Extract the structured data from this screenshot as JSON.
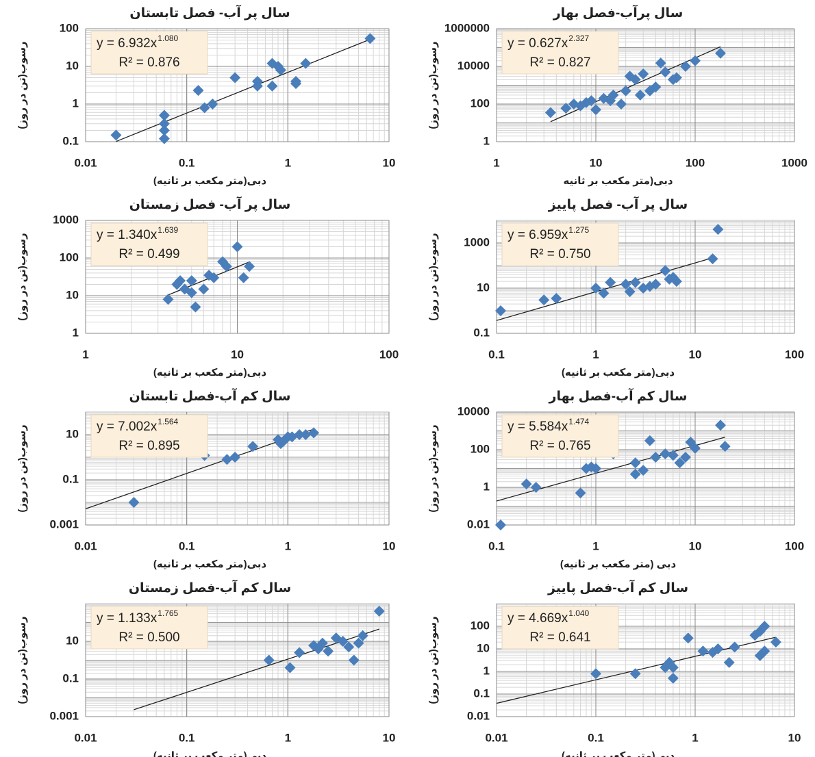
{
  "chart_data": [
    {
      "type": "scatter",
      "title": "سال پر آب- فصل تابستان",
      "x_label": "دبی(متر مکعب بر ثانیه)",
      "y_label": "رسوب(تن در روز)",
      "x_scale": "log",
      "y_scale": "log",
      "grid": true,
      "color": "#4a7ebb",
      "xlim": [
        0.01,
        10
      ],
      "xticks": [
        0.01,
        0.1,
        1,
        10
      ],
      "ylim": [
        0.1,
        100
      ],
      "yticks": [
        0.1,
        1,
        10,
        100
      ],
      "x": [
        0.02,
        0.06,
        0.06,
        0.06,
        0.06,
        0.13,
        0.15,
        0.18,
        0.3,
        0.5,
        0.5,
        0.7,
        0.7,
        0.8,
        0.85,
        1.2,
        1.2,
        1.5,
        6.5
      ],
      "values": [
        0.15,
        0.2,
        0.12,
        0.3,
        0.5,
        2.3,
        0.8,
        1,
        5,
        3,
        4,
        3,
        12,
        10,
        8,
        4,
        3.5,
        12,
        55
      ],
      "trendline": {
        "equation": "y = 6.932x",
        "exponent_label": "1.080",
        "r2_label": "R² = 0.876",
        "coefficient": 6.932,
        "exponent": 1.08,
        "x_range": [
          0.02,
          6.5
        ]
      }
    },
    {
      "type": "scatter",
      "title": "سال پرآب-فصل بهار",
      "x_label": "دبی(متر مکعب بر ثانیه",
      "y_label": "رسوب(تن در روز)",
      "x_scale": "log",
      "y_scale": "log",
      "grid": true,
      "color": "#4a7ebb",
      "xlim": [
        1,
        1000
      ],
      "xticks": [
        1,
        10,
        100,
        1000
      ],
      "ylim": [
        1,
        1000000
      ],
      "yticks": [
        1,
        100,
        10000,
        1000000
      ],
      "x": [
        3.5,
        5,
        6,
        7,
        8,
        9,
        10,
        12,
        14,
        15,
        18,
        20,
        22,
        25,
        28,
        30,
        35,
        40,
        45,
        50,
        60,
        65,
        80,
        100,
        180
      ],
      "values": [
        35,
        60,
        100,
        80,
        120,
        150,
        50,
        200,
        150,
        300,
        100,
        500,
        3000,
        2000,
        300,
        4000,
        500,
        800,
        15000,
        5000,
        2000,
        2500,
        10000,
        20000,
        50000
      ],
      "trendline": {
        "equation": "y = 0.627x",
        "exponent_label": "2.327",
        "r2_label": "R² = 0.827",
        "coefficient": 0.627,
        "exponent": 2.327,
        "x_range": [
          3.5,
          180
        ]
      }
    },
    {
      "type": "scatter",
      "title": "سال پر آب- فصل زمستان",
      "x_label": "دبی(متر مکعب بر ثانیه)",
      "y_label": "رسوب(تن در روز)",
      "x_scale": "log",
      "y_scale": "log",
      "grid": true,
      "color": "#4a7ebb",
      "xlim": [
        1,
        100
      ],
      "xticks": [
        1,
        10,
        100
      ],
      "ylim": [
        1,
        1000
      ],
      "yticks": [
        1,
        10,
        100,
        1000
      ],
      "x": [
        3.5,
        4,
        4.2,
        4.5,
        5,
        5,
        5.3,
        6,
        6.5,
        7,
        8,
        8.5,
        10,
        11,
        12
      ],
      "values": [
        8,
        20,
        25,
        15,
        25,
        12,
        5,
        15,
        35,
        30,
        80,
        60,
        200,
        30,
        60
      ],
      "trendline": {
        "equation": "y = 1.340x",
        "exponent_label": "1.639",
        "r2_label": "R² = 0.499",
        "coefficient": 1.34,
        "exponent": 1.639,
        "x_range": [
          3.5,
          12
        ]
      }
    },
    {
      "type": "scatter",
      "title": "سال پر آب- فصل پاییز",
      "x_label": "دبی(متر مکعب بر ثانیه)",
      "y_label": "رسوب(تن در روز)",
      "x_scale": "log",
      "y_scale": "log",
      "grid": true,
      "color": "#4a7ebb",
      "xlim": [
        0.1,
        100
      ],
      "xticks": [
        0.1,
        1,
        10,
        100
      ],
      "ylim": [
        0.1,
        10000
      ],
      "yticks": [
        0.1,
        10,
        1000
      ],
      "x": [
        0.11,
        0.3,
        0.4,
        1,
        1.2,
        1.4,
        2,
        2.2,
        2.5,
        3,
        3.5,
        4,
        5,
        5.5,
        6,
        6.5,
        15,
        17
      ],
      "values": [
        1,
        3,
        3.5,
        10,
        6,
        18,
        15,
        7,
        18,
        10,
        12,
        15,
        60,
        25,
        30,
        20,
        200,
        4000
      ],
      "trendline": {
        "equation": "y = 6.959x",
        "exponent_label": "1.275",
        "r2_label": "R² = 0.750",
        "coefficient": 6.959,
        "exponent": 1.275,
        "x_range": [
          0.1,
          15
        ]
      }
    },
    {
      "type": "scatter",
      "title": "سال کم آب-فصل تابستان",
      "x_label": "دبی(متر مکعب بر ثانیه)",
      "y_label": "رسوب(تن در روز)",
      "x_scale": "log",
      "y_scale": "log",
      "grid": true,
      "color": "#4a7ebb",
      "xlim": [
        0.01,
        10
      ],
      "xticks": [
        0.01,
        0.1,
        1,
        10
      ],
      "ylim": [
        0.001,
        100
      ],
      "yticks": [
        0.001,
        0.1,
        10
      ],
      "x": [
        0.03,
        0.15,
        0.25,
        0.3,
        0.45,
        0.8,
        0.85,
        0.9,
        1,
        1.1,
        1.3,
        1.5,
        1.8
      ],
      "values": [
        0.01,
        1.2,
        0.8,
        1,
        3,
        6,
        4,
        5,
        8,
        8,
        10,
        10,
        12
      ],
      "trendline": {
        "equation": "y = 7.002x",
        "exponent_label": "1.564",
        "r2_label": "R² = 0.895",
        "coefficient": 7.002,
        "exponent": 1.564,
        "x_range": [
          0.01,
          1.8
        ]
      }
    },
    {
      "type": "scatter",
      "title": "سال کم آب-فصل بهار",
      "x_label": "دبی (متر مکعب بر ثانیه)",
      "y_label": "رسوب(تن در روز)",
      "x_scale": "log",
      "y_scale": "log",
      "grid": true,
      "color": "#4a7ebb",
      "xlim": [
        0.1,
        100
      ],
      "xticks": [
        0.1,
        1,
        10,
        100
      ],
      "ylim": [
        0.01,
        10000
      ],
      "yticks": [
        0.01,
        1,
        100,
        10000
      ],
      "x": [
        0.11,
        0.2,
        0.25,
        0.7,
        0.8,
        0.9,
        1,
        1.5,
        2.5,
        2.5,
        3,
        3.5,
        4,
        5,
        6,
        7,
        8,
        9,
        10,
        18,
        20
      ],
      "values": [
        0.01,
        1.5,
        1,
        0.5,
        10,
        12,
        10,
        60,
        20,
        5,
        8,
        300,
        40,
        60,
        50,
        20,
        40,
        250,
        120,
        2000,
        150
      ],
      "trendline": {
        "equation": "y = 5.584x",
        "exponent_label": "1.474",
        "r2_label": "R² = 0.765",
        "coefficient": 5.584,
        "exponent": 1.474,
        "x_range": [
          0.1,
          20
        ]
      }
    },
    {
      "type": "scatter",
      "title": "سال کم آب-فصل زمستان",
      "x_label": "دبی(متر مکعب بر ثانیه)",
      "y_label": "رسوب(تن در روز)",
      "x_scale": "log",
      "y_scale": "log",
      "grid": true,
      "color": "#4a7ebb",
      "xlim": [
        0.01,
        10
      ],
      "xticks": [
        0.01,
        0.1,
        1,
        10
      ],
      "ylim": [
        0.001,
        1000
      ],
      "yticks": [
        0.001,
        0.1,
        10
      ],
      "x": [
        0.65,
        1.05,
        1.3,
        1.8,
        2,
        2.2,
        2.5,
        3,
        3.5,
        4,
        4.5,
        5,
        5.5,
        8
      ],
      "values": [
        1,
        0.4,
        2.5,
        6,
        4,
        8,
        3,
        15,
        10,
        5,
        1,
        8,
        20,
        400
      ],
      "trendline": {
        "equation": "y = 1.133x",
        "exponent_label": "1.765",
        "r2_label": "R² = 0.500",
        "coefficient": 1.133,
        "exponent": 1.765,
        "x_range": [
          0.03,
          8
        ]
      }
    },
    {
      "type": "scatter",
      "title": "سال کم آب-فصل پاییز",
      "x_label": "دبی(متر مکعب بر ثانیه)",
      "y_label": "رسوب(تن در روز)",
      "x_scale": "log",
      "y_scale": "log",
      "grid": true,
      "color": "#4a7ebb",
      "xlim": [
        0.01,
        10
      ],
      "xticks": [
        0.01,
        0.1,
        1,
        10
      ],
      "ylim": [
        0.01,
        1000
      ],
      "yticks": [
        0.01,
        0.1,
        1,
        10,
        100
      ],
      "x": [
        0.1,
        0.25,
        0.5,
        0.55,
        0.6,
        0.6,
        0.85,
        1.2,
        1.5,
        1.7,
        2.2,
        2.5,
        4,
        4.5,
        4.5,
        5,
        5,
        6.5
      ],
      "values": [
        0.8,
        0.8,
        1.5,
        2.5,
        0.5,
        1.5,
        30,
        8,
        7,
        10,
        2.5,
        12,
        40,
        60,
        5,
        100,
        8,
        20
      ],
      "trendline": {
        "equation": "y = 4.669x",
        "exponent_label": "1.040",
        "r2_label": "R² = 0.641",
        "coefficient": 4.669,
        "exponent": 1.04,
        "x_range": [
          0.01,
          6.5
        ]
      }
    }
  ]
}
